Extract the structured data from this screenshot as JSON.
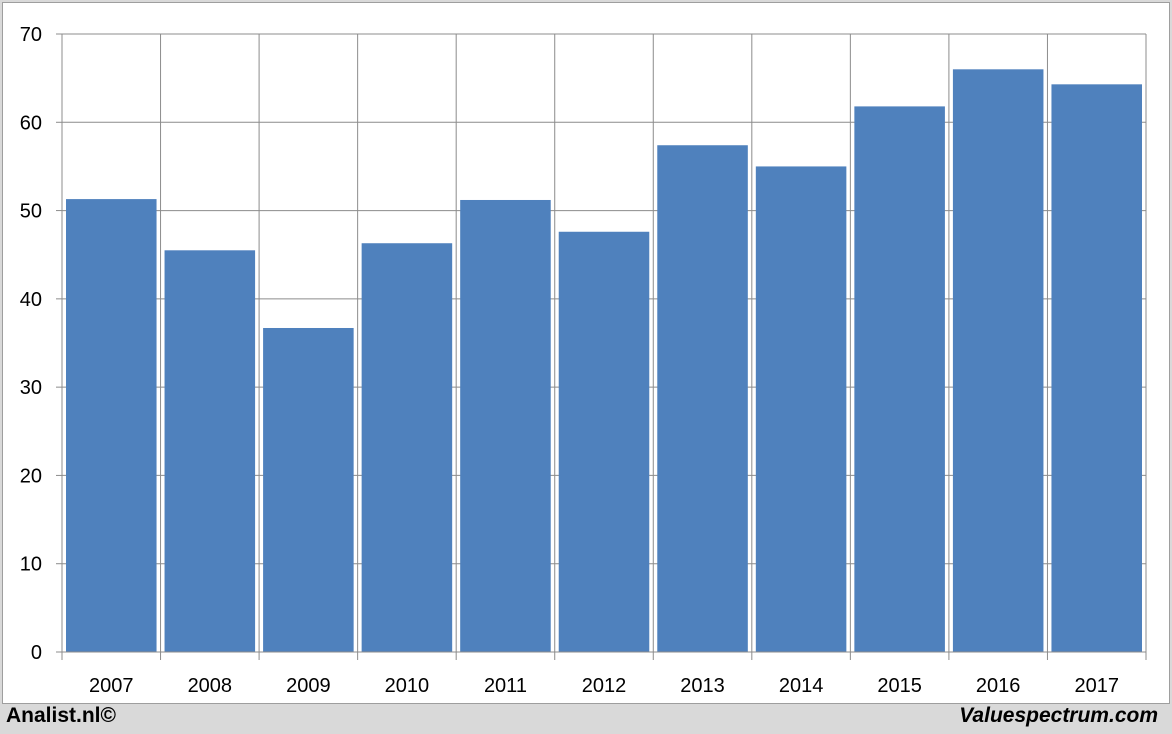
{
  "chart_data": {
    "type": "bar",
    "title": "",
    "xlabel": "",
    "ylabel": "",
    "categories": [
      "2007",
      "2008",
      "2009",
      "2010",
      "2011",
      "2012",
      "2013",
      "2014",
      "2015",
      "2016",
      "2017"
    ],
    "values": [
      51.3,
      45.5,
      36.7,
      46.3,
      51.2,
      47.6,
      57.4,
      55.0,
      61.8,
      66.0,
      64.3
    ],
    "ylim": [
      0,
      70
    ],
    "yticks": [
      0,
      10,
      20,
      30,
      40,
      50,
      60,
      70
    ],
    "grid": true,
    "legend": "none",
    "bar_color": "#4f81bd"
  },
  "footer": {
    "left_label": "Analist.nl©",
    "right_label": "Valuespectrum.com"
  },
  "colors": {
    "background": "#d9d9d9",
    "plot_background": "#ffffff",
    "gridline": "#8c8c8c"
  }
}
